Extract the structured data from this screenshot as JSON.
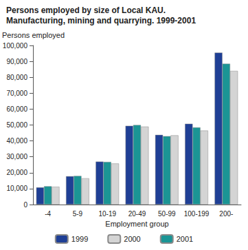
{
  "chart_data": {
    "type": "bar",
    "title": "Persons employed by size of Local KAU. Manufacturing, mining and quarrying. 1999-2001",
    "y_label": "Persons employed",
    "x_label": "Employment group",
    "categories": [
      "-4",
      "5-9",
      "10-19",
      "20-49",
      "50-99",
      "100-199",
      "200-"
    ],
    "series": [
      {
        "name": "1999",
        "color": "#1f3f95",
        "values": [
          10800,
          17800,
          27000,
          49500,
          43800,
          50800,
          95500
        ]
      },
      {
        "name": "2000",
        "color": "#d4d4d4",
        "values": [
          11200,
          16500,
          25800,
          49000,
          43500,
          46500,
          84000
        ]
      },
      {
        "name": "2001",
        "color": "#1b9595",
        "values": [
          11500,
          18000,
          26800,
          50000,
          43000,
          48500,
          88500
        ]
      }
    ],
    "ylim": [
      0,
      100000
    ],
    "yticks": [
      0,
      10000,
      20000,
      30000,
      40000,
      50000,
      60000,
      70000,
      80000,
      90000,
      100000
    ],
    "grid": false,
    "legend": "bottom"
  }
}
